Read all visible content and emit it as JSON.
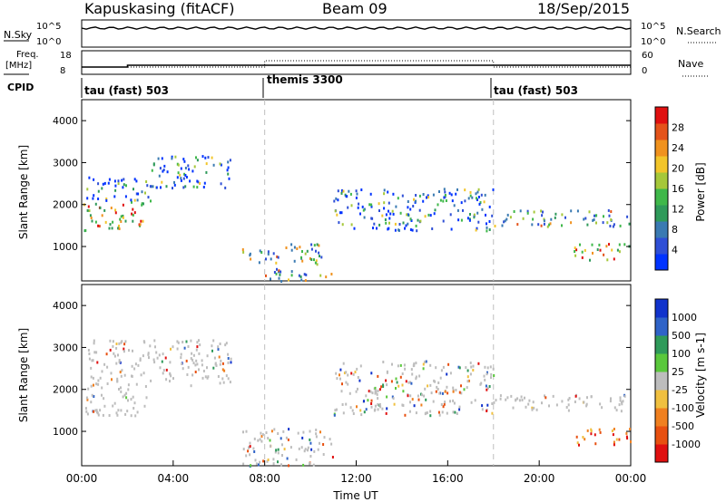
{
  "header": {
    "station": "Kapuskasing (fitACF)",
    "beam": "Beam 09",
    "date": "18/Sep/2015"
  },
  "panels": {
    "nsky_label": "N.Sky",
    "nsearch_label": "N.Search",
    "noise_ticks": [
      "10^5",
      "10^0"
    ],
    "freq_label": "Freq.",
    "freq_unit": "[MHz]",
    "freq_ticks": [
      "18",
      "8"
    ],
    "nave_label": "Nave",
    "nave_ticks": [
      "60",
      "0"
    ],
    "cpid_label": "CPID",
    "cpid_segments": [
      "tau (fast) 503",
      "themis 3300",
      "tau (fast) 503"
    ]
  },
  "colors": {
    "accent_line": "#000000",
    "grid_dash": "#bfbfbf",
    "power_scale": [
      "#0033ff",
      "#2f4fd6",
      "#3a7ab2",
      "#2f9a5a",
      "#3fb84a",
      "#a6c83a",
      "#f2c52a",
      "#f0921e",
      "#e4531a",
      "#e01010"
    ],
    "velocity_scale": [
      "#1133cc",
      "#2f63c8",
      "#2f9a5a",
      "#5ac83c",
      "#bdbdbd",
      "#f0c040",
      "#f08020",
      "#e85010",
      "#e01010"
    ]
  },
  "chart_data": [
    {
      "type": "heatmap",
      "title": "",
      "xlabel": "Time UT",
      "ylabel": "Slant Range [km]",
      "xlim": [
        0,
        24
      ],
      "ylim": [
        180,
        4500
      ],
      "x_ticks": [
        "00:00",
        "04:00",
        "08:00",
        "12:00",
        "16:00",
        "20:00",
        "00:00"
      ],
      "y_ticks": [
        1000,
        2000,
        3000,
        4000
      ],
      "colorbar_label": "Power [dB]",
      "colorbar_ticks": [
        "28",
        "24",
        "20",
        "16",
        "12",
        "8",
        "4"
      ],
      "mode_boundaries_ut": [
        8.0,
        18.0
      ],
      "bands": [
        {
          "t0": 0.0,
          "t1": 2.8,
          "r0": 1400,
          "r1": 2100,
          "strength": "strong"
        },
        {
          "t0": 0.2,
          "t1": 3.2,
          "r0": 2100,
          "r1": 2700,
          "strength": "weak"
        },
        {
          "t0": 3.0,
          "t1": 6.5,
          "r0": 2400,
          "r1": 3200,
          "strength": "weak"
        },
        {
          "t0": 7.0,
          "t1": 10.5,
          "r0": 600,
          "r1": 1100,
          "strength": "medium"
        },
        {
          "t0": 8.0,
          "t1": 11.0,
          "r0": 200,
          "r1": 500,
          "strength": "medium"
        },
        {
          "t0": 11.0,
          "t1": 18.0,
          "r0": 1400,
          "r1": 2400,
          "strength": "weak"
        },
        {
          "t0": 18.0,
          "t1": 24.0,
          "r0": 1500,
          "r1": 1900,
          "strength": "medium"
        },
        {
          "t0": 21.5,
          "t1": 24.0,
          "r0": 700,
          "r1": 1100,
          "strength": "strong"
        }
      ]
    },
    {
      "type": "heatmap",
      "title": "",
      "xlabel": "Time UT",
      "ylabel": "Slant Range [km]",
      "xlim": [
        0,
        24
      ],
      "ylim": [
        180,
        4500
      ],
      "x_ticks": [
        "00:00",
        "04:00",
        "08:00",
        "12:00",
        "16:00",
        "20:00",
        "00:00"
      ],
      "y_ticks": [
        1000,
        2000,
        3000,
        4000
      ],
      "colorbar_label": "Velocity [m s-1]",
      "colorbar_ticks": [
        "1000",
        "500",
        "100",
        "25",
        "-25",
        "-100",
        "-500",
        "-1000"
      ],
      "mode_boundaries_ut": [
        8.0,
        18.0
      ],
      "bands": [
        {
          "t0": 0.0,
          "t1": 2.8,
          "r0": 1400,
          "r1": 2100,
          "strength": "ground"
        },
        {
          "t0": 0.2,
          "t1": 6.5,
          "r0": 2100,
          "r1": 3200,
          "strength": "ground"
        },
        {
          "t0": 7.0,
          "t1": 11.0,
          "r0": 200,
          "r1": 1100,
          "strength": "mixed"
        },
        {
          "t0": 11.0,
          "t1": 18.0,
          "r0": 1400,
          "r1": 2700,
          "strength": "mixed"
        },
        {
          "t0": 18.0,
          "t1": 24.0,
          "r0": 1500,
          "r1": 1900,
          "strength": "ground"
        },
        {
          "t0": 21.5,
          "t1": 24.0,
          "r0": 700,
          "r1": 1100,
          "strength": "negative"
        }
      ]
    }
  ]
}
